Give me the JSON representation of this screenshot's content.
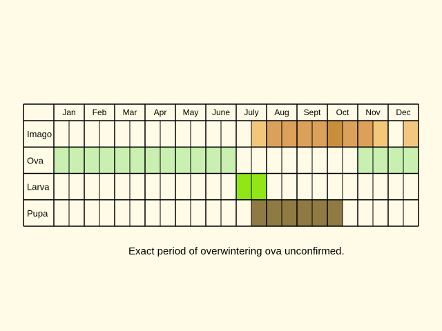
{
  "chart_data": {
    "type": "table",
    "months": [
      "Jan",
      "Feb",
      "Mar",
      "Apr",
      "May",
      "June",
      "July",
      "Aug",
      "Sept",
      "Oct",
      "Nov",
      "Dec"
    ],
    "stages": [
      {
        "name": "Imago",
        "cells": [
          null,
          null,
          null,
          null,
          null,
          null,
          null,
          null,
          null,
          null,
          null,
          null,
          null,
          null,
          null,
          null,
          null,
          null,
          null,
          null,
          null,
          null,
          null,
          null,
          null,
          null,
          null,
          null,
          null,
          null,
          null,
          null,
          null,
          null,
          null,
          null,
          null,
          null,
          null,
          null,
          null,
          null,
          null,
          null,
          null,
          "#f2c77a",
          "#e9b76a",
          "#dda25c",
          "#dba05a",
          "#dba05a",
          "#dba05a",
          "#d9a057",
          "#dba05a",
          "#dba05a",
          "#dba05a",
          "#dba05a",
          "#dba05a",
          "#dca35b",
          "#c98e3b",
          "#d9a057",
          "#dba05a",
          "#dba05a",
          "#dba05a",
          "#dba05a",
          "#dba05a",
          "#dba05a",
          "#dba05a",
          "#dba05a",
          "#e3ad66",
          "#f3c878",
          "#f3c878",
          "#f3c878",
          "#f3c878",
          null,
          null,
          null,
          null,
          null,
          null,
          null,
          "#f2c880",
          "#f2c880",
          null,
          null
        ]
      },
      {
        "name": "Ova",
        "cells": [
          "#c9f0b0",
          "#c9f0b0",
          "#c9f0b0",
          "#c9f0b0",
          "#c9f0b0",
          "#c9f0b0",
          "#c9f0b0",
          "#c9f0b0",
          "#c9f0b0",
          "#c9f0b0",
          "#c9f0b0",
          "#c9f0b0",
          "#c9f0b0",
          "#c9f0b0",
          "#c9f0b0",
          "#c9f0b0",
          "#c9f0b0",
          "#c9f0b0",
          "#c9f0b0",
          "#c9f0b0",
          "#c9f0b0",
          "#c9f0b0",
          "#c9f0b0",
          "#c9f0b0",
          "#c9f0b0",
          "#c9f0b0",
          "#c9f0b0",
          "#c9f0b0",
          "#c9f0b0",
          "#c9f0b0",
          "#c9f0b0",
          "#c9f0b0",
          "#c9f0b0",
          "#c9f0b0",
          "#c9f0b0",
          "#c9f0b0",
          "#c9f0b0",
          "#c9f0b0",
          "#c9f0b0",
          "#c9f0b0",
          "#c9f0b0",
          null,
          null,
          null,
          null,
          null,
          null,
          null,
          null,
          null,
          null,
          null,
          null,
          null,
          null,
          null,
          null,
          null,
          null,
          null,
          null,
          null,
          null,
          null,
          null,
          null,
          "#c9f0b0",
          "#c9f0b0",
          "#c9f0b0",
          "#c9f0b0",
          "#c9f0b0",
          "#c9f0b0",
          "#c9f0b0",
          "#c9f0b0",
          "#c9f0b0",
          "#c9f0b0",
          "#c9f0b0",
          "#c9f0b0",
          "#c9f0b0",
          "#c9f0b0",
          "#c9f0b0",
          "#c9f0b0",
          "#c9f0b0",
          "#c9f0b0",
          "#c9f0b0",
          "#c9f0b0",
          "#c9f0b0",
          "#c9f0b0",
          "#c9f0b0",
          "#c9f0b0",
          "#c9f0b0",
          "#c9f0b0"
        ]
      },
      {
        "name": "Larva",
        "cells": [
          null,
          null,
          null,
          null,
          null,
          null,
          null,
          null,
          null,
          null,
          null,
          null,
          null,
          null,
          null,
          null,
          null,
          null,
          null,
          null,
          null,
          null,
          null,
          null,
          null,
          null,
          null,
          null,
          null,
          null,
          null,
          null,
          null,
          null,
          null,
          null,
          null,
          null,
          null,
          null,
          "#90e617",
          "#90e617",
          "#90e617",
          "#90e617",
          "#90e617",
          "#90e617",
          "#90e617",
          "#90e617",
          "#90e617",
          "#90e617",
          "#90e617",
          "#90e617",
          "#90e617",
          "#90e617",
          "#90e617",
          "#90e617",
          "#90e617",
          "#90e617",
          "#90e617",
          "#90e617",
          "#90e617",
          "#90e617",
          null,
          null,
          null,
          null,
          null,
          null,
          null,
          null,
          null,
          null,
          null,
          null,
          null,
          null,
          null,
          null,
          null,
          null,
          null,
          null,
          null,
          null,
          null,
          null,
          null,
          null,
          null,
          null,
          null,
          null,
          null,
          null,
          null,
          null,
          null,
          null,
          null,
          null,
          null,
          null,
          null,
          null,
          null,
          null,
          null,
          null,
          null,
          null,
          null
        ]
      },
      {
        "name": "Pupa",
        "cells": []
      }
    ],
    "rows_half_months": [
      {
        "name": "Imago",
        "filled": [
          [
            13,
            13,
            "#f2c77a"
          ],
          [
            14,
            14,
            "#dba05a"
          ],
          [
            15,
            15,
            "#dba05a"
          ],
          [
            16,
            16,
            "#dba05a"
          ],
          [
            17,
            17,
            "#dba05a"
          ],
          [
            18,
            18,
            "#c98e3b"
          ],
          [
            19,
            19,
            "#dba05a"
          ],
          [
            20,
            20,
            "#dba05a"
          ],
          [
            21,
            21,
            "#f3c878"
          ],
          [
            23,
            23,
            "#f2c880"
          ]
        ]
      },
      {
        "name": "Ova",
        "filled": [
          [
            0,
            11,
            "#c9f0b0"
          ],
          [
            20,
            23,
            "#c9f0b0"
          ]
        ]
      },
      {
        "name": "Larva",
        "filled": [
          [
            12,
            13,
            "#90e617"
          ]
        ]
      },
      {
        "name": "Pupa",
        "filled": [
          [
            13,
            18,
            "#8f7a44"
          ]
        ]
      }
    ],
    "note": "Exact period of overwintering ova unconfirmed."
  }
}
